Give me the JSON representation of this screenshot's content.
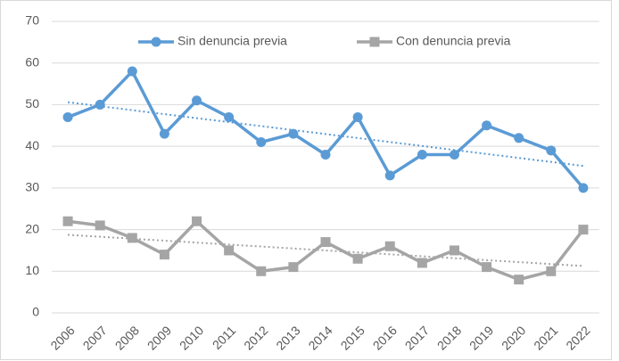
{
  "chart_data": {
    "type": "line",
    "categories": [
      "2006",
      "2007",
      "2008",
      "2009",
      "2010",
      "2011",
      "2012",
      "2013",
      "2014",
      "2015",
      "2016",
      "2017",
      "2018",
      "2019",
      "2020",
      "2021",
      "2022"
    ],
    "series": [
      {
        "name": "Sin denuncia previa",
        "color": "#5b9bd5",
        "marker": "circle",
        "values": [
          47,
          50,
          58,
          43,
          51,
          47,
          41,
          43,
          38,
          47,
          33,
          38,
          38,
          45,
          42,
          39,
          30
        ]
      },
      {
        "name": "Con denuncia previa",
        "color": "#a5a5a5",
        "marker": "square",
        "values": [
          22,
          21,
          18,
          14,
          22,
          15,
          10,
          11,
          17,
          13,
          16,
          12,
          15,
          11,
          8,
          10,
          20
        ]
      }
    ],
    "ylim": [
      0,
      70
    ],
    "yticks": [
      0,
      10,
      20,
      30,
      40,
      50,
      60,
      70
    ],
    "grid": true,
    "trendline": true,
    "legend": "top"
  }
}
